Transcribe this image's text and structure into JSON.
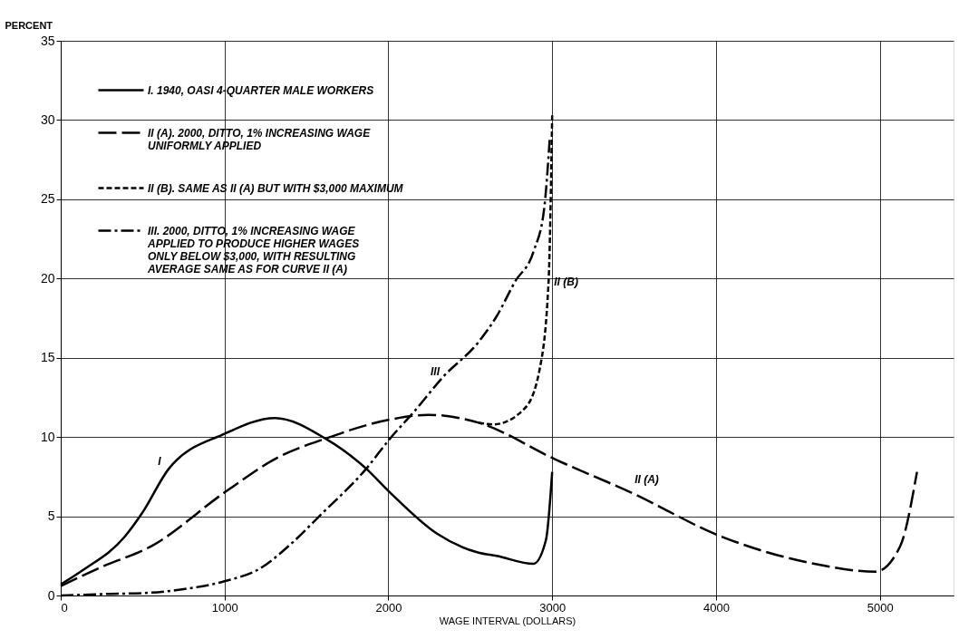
{
  "chart_data": {
    "type": "line",
    "xlabel": "WAGE INTERVAL (DOLLARS)",
    "ylabel": "PERCENT",
    "xlim": [
      0,
      5450
    ],
    "xticks": [
      0,
      1000,
      2000,
      3000,
      4000,
      5000
    ],
    "ylim": [
      0,
      35
    ],
    "yticks": [
      0,
      5,
      10,
      15,
      20,
      25,
      30,
      35
    ],
    "grid": true,
    "legend": "top left",
    "series": [
      {
        "name": "I.  1940, OASI 4-QUARTER MALE WORKERS",
        "color": "#000000",
        "line_style": "solid",
        "x": [
          0,
          135,
          390,
          497,
          660,
          1000,
          1308,
          1616,
          1865,
          2010,
          2297,
          2551,
          2660,
          2886,
          2962,
          3000
        ],
        "values": [
          0.7,
          1.6,
          3.7,
          5.2,
          8.0,
          10.2,
          11.2,
          9.9,
          8.0,
          6.5,
          3.9,
          2.7,
          2.5,
          2.0,
          3.5,
          7.8
        ]
      },
      {
        "name": "II (A).  2000, DITTO, 1% INCREASING WAGE\nUNIFORMLY APPLIED",
        "color": "#000000",
        "line_style": "longdash",
        "x": [
          0,
          227,
          568,
          1000,
          1324,
          1616,
          2010,
          2243,
          2551,
          3016,
          3481,
          4038,
          4600,
          4973,
          5124,
          5227
        ],
        "values": [
          0.6,
          1.7,
          3.2,
          6.5,
          8.7,
          9.9,
          11.1,
          11.4,
          10.9,
          8.6,
          6.5,
          3.7,
          2.0,
          1.5,
          3.1,
          7.8
        ]
      },
      {
        "name": "II (B).  SAME AS II (A) BUT WITH $3,000 MAXIMUM",
        "color": "#000000",
        "line_style": "dashed",
        "x": [
          2551,
          2643,
          2832,
          2924,
          2978,
          3000
        ],
        "values": [
          10.9,
          10.8,
          11.8,
          14.3,
          19.8,
          30.3
        ]
      },
      {
        "name": "III.  2000, DITTO, 1% INCREASING WAGE\nAPPLIED TO PRODUCE HIGHER WAGES\nONLY BELOW $3,000, WITH RESULTING\nAVERAGE SAME AS FOR CURVE II (A)",
        "color": "#000000",
        "line_style": "dashdot",
        "x": [
          0,
          300,
          500,
          750,
          1000,
          1216,
          1400,
          1578,
          1865,
          2010,
          2157,
          2335,
          2551,
          2660,
          2773,
          2886,
          2951,
          2985
        ],
        "values": [
          0,
          0.1,
          0.15,
          0.4,
          0.9,
          1.7,
          3.2,
          5.0,
          8.0,
          9.9,
          11.6,
          13.8,
          16.0,
          17.6,
          19.8,
          21.7,
          24.4,
          28.8
        ]
      }
    ],
    "annotations": [
      {
        "text": "I",
        "x": 660,
        "y": 8.0
      },
      {
        "text": "II (A)",
        "x": 3481,
        "y": 6.5
      },
      {
        "text": "II (B)",
        "x": 2978,
        "y": 19.8
      },
      {
        "text": "III",
        "x": 2335,
        "y": 13.8
      }
    ]
  }
}
